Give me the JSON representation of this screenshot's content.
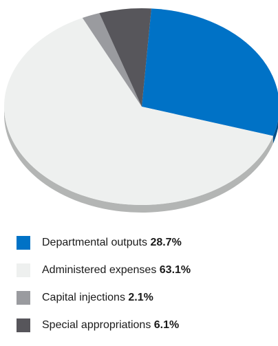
{
  "chart_data": {
    "type": "pie",
    "title": "",
    "start_angle_deg": 10,
    "slices": [
      {
        "label": "Departmental outputs",
        "value": 28.7,
        "value_label": "28.7%",
        "color": "#0072c6",
        "side_color": "#004f8c"
      },
      {
        "label": "Administered expenses",
        "value": 63.1,
        "value_label": "63.1%",
        "color": "#eef0ef",
        "side_color": "#b3b5b4"
      },
      {
        "label": "Capital injections",
        "value": 2.1,
        "value_label": "2.1%",
        "color": "#9a9b9f",
        "side_color": "#6e6f73"
      },
      {
        "label": "Special appropriations",
        "value": 6.1,
        "value_label": "6.1%",
        "color": "#57565b",
        "side_color": "#3a393d"
      }
    ],
    "legend_position": "bottom-left"
  }
}
